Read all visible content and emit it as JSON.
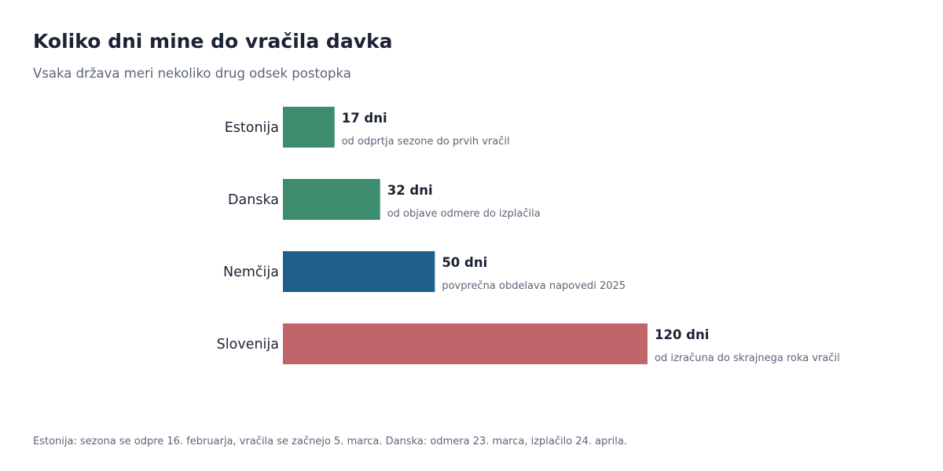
{
  "title": "Koliko dni mine do vračila davka",
  "subtitle": "Vsaka država meri nekoliko drug odsek postopka",
  "footnote": "Estonija: sezona se odpre 16. februarja, vračila se začnejo 5. marca.  Danska: odmera 23. marca, izplačilo 24. aprila.",
  "chart_data": {
    "type": "bar",
    "orientation": "horizontal",
    "categories": [
      "Estonija",
      "Danska",
      "Nemčija",
      "Slovenija"
    ],
    "values": [
      17,
      32,
      50,
      120
    ],
    "value_labels": [
      "17 dni",
      "32 dni",
      "50 dni",
      "120 dni"
    ],
    "annotations": [
      "od odprtja sezone do prvih vračil",
      "od objave odmere do izplačila",
      "povprečna obdelava napovedi 2025",
      "od izračuna do skrajnega roka vračil"
    ],
    "colors": [
      "#3e8c6e",
      "#3e8c6e",
      "#1f5f8b",
      "#c0666a"
    ],
    "xlim": [
      0,
      120
    ],
    "grid": false,
    "legend": false
  }
}
